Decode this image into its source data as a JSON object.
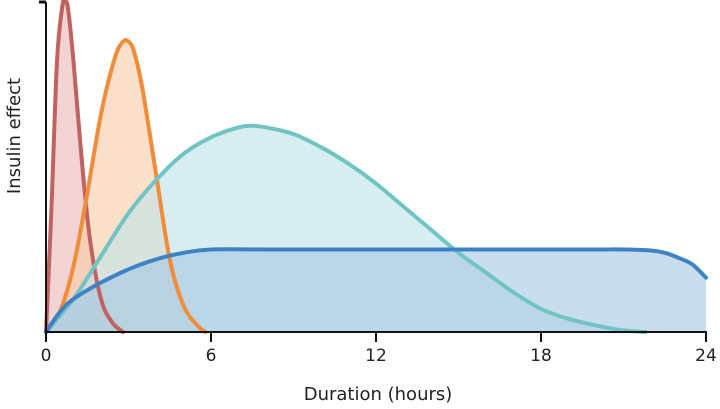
{
  "chart_data": {
    "type": "area",
    "title": "",
    "xlabel": "Duration (hours)",
    "ylabel": "Insulin effect",
    "xlim": [
      0,
      24
    ],
    "ylim": [
      0,
      100
    ],
    "x_ticks": [
      "0",
      "6",
      "12",
      "18",
      "24"
    ],
    "y_ticks": [],
    "grid": false,
    "legend": "none",
    "series": [
      {
        "color": "#c0625f",
        "fill": "#e8b8b8",
        "x": [
          0,
          0.2,
          0.4,
          0.6,
          0.7,
          0.8,
          1.0,
          1.3,
          1.6,
          2.0,
          2.4,
          2.8
        ],
        "y": [
          0,
          38,
          82,
          99,
          100,
          98,
          82,
          52,
          28,
          10,
          3,
          0
        ]
      },
      {
        "color": "#f08c3a",
        "fill": "#f9cda8",
        "x": [
          0,
          0.5,
          1.0,
          1.5,
          2.0,
          2.5,
          2.8,
          3.0,
          3.2,
          3.5,
          4.0,
          4.5,
          5.0,
          5.5,
          5.8
        ],
        "y": [
          0,
          6,
          20,
          42,
          66,
          83,
          88,
          88,
          85,
          74,
          48,
          22,
          8,
          2,
          0
        ]
      },
      {
        "color": "#72c4c4",
        "fill": "#bfe4e6",
        "x": [
          0,
          1,
          2,
          3,
          4,
          5,
          6,
          7,
          7.5,
          8,
          9,
          10,
          11,
          12,
          13,
          14,
          15,
          16,
          17,
          18,
          19,
          20,
          21,
          21.8
        ],
        "y": [
          0,
          10,
          23,
          36,
          46,
          54,
          59,
          62,
          62.5,
          62,
          60,
          56,
          51,
          45,
          38,
          31,
          24,
          18,
          12,
          7,
          4,
          2,
          0.5,
          0
        ]
      },
      {
        "color": "#3f82c3",
        "fill": "#a7c8e4",
        "x": [
          0,
          0.5,
          1,
          2,
          3,
          4,
          5,
          6,
          8,
          10,
          12,
          14,
          16,
          18,
          20,
          21,
          22,
          22.5,
          23,
          23.5,
          24
        ],
        "y": [
          0,
          6,
          10,
          15,
          19,
          22,
          24,
          25,
          25,
          25,
          25,
          25,
          25,
          25,
          25,
          25,
          24.7,
          24,
          22.5,
          20.5,
          16.5
        ]
      }
    ]
  }
}
